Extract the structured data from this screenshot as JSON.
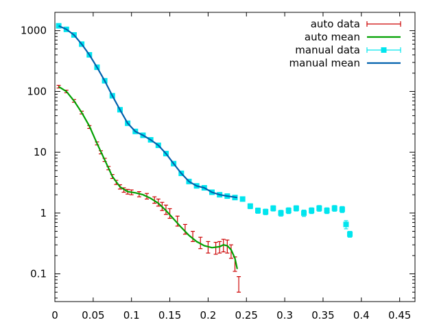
{
  "chart_data": {
    "type": "scatter",
    "title": "",
    "xlabel": "",
    "ylabel": "",
    "xlim": [
      0,
      0.47
    ],
    "ylim": [
      0.035,
      2000
    ],
    "y_scale": "log",
    "grid": false,
    "legend_position": "top-right",
    "x_ticks": [
      {
        "value": 0,
        "label": "0"
      },
      {
        "value": 0.05,
        "label": "0.05"
      },
      {
        "value": 0.1,
        "label": "0.1"
      },
      {
        "value": 0.15,
        "label": "0.15"
      },
      {
        "value": 0.2,
        "label": "0.2"
      },
      {
        "value": 0.25,
        "label": "0.25"
      },
      {
        "value": 0.3,
        "label": "0.3"
      },
      {
        "value": 0.35,
        "label": "0.35"
      },
      {
        "value": 0.4,
        "label": "0.4"
      },
      {
        "value": 0.45,
        "label": "0.45"
      }
    ],
    "y_ticks": [
      {
        "value": 0.1,
        "label": "0.1"
      },
      {
        "value": 1,
        "label": "1"
      },
      {
        "value": 10,
        "label": "10"
      },
      {
        "value": 100,
        "label": "100"
      },
      {
        "value": 1000,
        "label": "1000"
      }
    ],
    "series": [
      {
        "name": "auto data",
        "style": "errorbars",
        "color": "#cc0000",
        "x": [
          0.005,
          0.015,
          0.025,
          0.035,
          0.045,
          0.055,
          0.06,
          0.065,
          0.07,
          0.075,
          0.08,
          0.085,
          0.09,
          0.095,
          0.1,
          0.11,
          0.12,
          0.13,
          0.135,
          0.14,
          0.145,
          0.15,
          0.16,
          0.17,
          0.18,
          0.19,
          0.2,
          0.21,
          0.215,
          0.22,
          0.225,
          0.23,
          0.235,
          0.24
        ],
        "y": [
          120,
          100,
          70,
          45,
          26,
          14,
          10,
          7.5,
          5.5,
          4,
          3.2,
          2.7,
          2.4,
          2.25,
          2.2,
          2.05,
          1.9,
          1.65,
          1.5,
          1.3,
          1.15,
          1.0,
          0.75,
          0.55,
          0.42,
          0.33,
          0.28,
          0.27,
          0.28,
          0.3,
          0.29,
          0.24,
          0.15,
          0.07
        ],
        "err": [
          6,
          5,
          3.5,
          2.3,
          1.4,
          0.8,
          0.6,
          0.45,
          0.35,
          0.3,
          0.25,
          0.22,
          0.2,
          0.2,
          0.2,
          0.2,
          0.2,
          0.2,
          0.2,
          0.2,
          0.2,
          0.18,
          0.14,
          0.1,
          0.08,
          0.07,
          0.06,
          0.06,
          0.06,
          0.07,
          0.07,
          0.06,
          0.04,
          0.02
        ]
      },
      {
        "name": "auto mean",
        "style": "line",
        "color": "#00a000",
        "x": [
          0.005,
          0.015,
          0.025,
          0.035,
          0.045,
          0.055,
          0.065,
          0.075,
          0.085,
          0.095,
          0.105,
          0.115,
          0.125,
          0.135,
          0.145,
          0.155,
          0.165,
          0.175,
          0.185,
          0.195,
          0.205,
          0.215,
          0.22,
          0.225,
          0.23,
          0.235,
          0.238
        ],
        "y": [
          120,
          100,
          70,
          45,
          27,
          14,
          7.5,
          4.0,
          2.7,
          2.25,
          2.15,
          2.0,
          1.75,
          1.45,
          1.1,
          0.8,
          0.58,
          0.43,
          0.34,
          0.29,
          0.27,
          0.28,
          0.3,
          0.29,
          0.25,
          0.18,
          0.12
        ]
      },
      {
        "name": "manual data",
        "style": "errorbars-points",
        "color": "#00e5ee",
        "x": [
          0.005,
          0.015,
          0.025,
          0.035,
          0.045,
          0.055,
          0.065,
          0.075,
          0.085,
          0.095,
          0.105,
          0.115,
          0.125,
          0.135,
          0.145,
          0.155,
          0.165,
          0.175,
          0.185,
          0.195,
          0.205,
          0.215,
          0.225,
          0.235,
          0.245,
          0.255,
          0.265,
          0.275,
          0.285,
          0.295,
          0.305,
          0.315,
          0.325,
          0.335,
          0.345,
          0.355,
          0.365,
          0.375,
          0.38,
          0.385
        ],
        "y": [
          1200,
          1050,
          850,
          600,
          400,
          250,
          150,
          85,
          50,
          30,
          22,
          19,
          16,
          13,
          9.5,
          6.5,
          4.5,
          3.3,
          2.8,
          2.6,
          2.2,
          2.0,
          1.9,
          1.8,
          1.7,
          1.3,
          1.1,
          1.05,
          1.2,
          1.0,
          1.1,
          1.2,
          1.0,
          1.1,
          1.2,
          1.1,
          1.2,
          1.15,
          0.65,
          0.45
        ],
        "err": [
          60,
          50,
          40,
          30,
          20,
          13,
          8,
          4.5,
          2.5,
          1.5,
          1.1,
          1.0,
          0.8,
          0.7,
          0.5,
          0.35,
          0.25,
          0.2,
          0.17,
          0.16,
          0.14,
          0.13,
          0.13,
          0.13,
          0.13,
          0.12,
          0.11,
          0.11,
          0.12,
          0.11,
          0.12,
          0.12,
          0.12,
          0.12,
          0.13,
          0.12,
          0.13,
          0.13,
          0.1,
          0.05
        ]
      },
      {
        "name": "manual mean",
        "style": "line",
        "color": "#0060ad",
        "x": [
          0.005,
          0.015,
          0.025,
          0.035,
          0.045,
          0.055,
          0.065,
          0.075,
          0.085,
          0.095,
          0.105,
          0.115,
          0.125,
          0.135,
          0.145,
          0.155,
          0.165,
          0.175,
          0.185,
          0.195,
          0.205,
          0.215,
          0.225,
          0.238
        ],
        "y": [
          1200,
          1050,
          850,
          600,
          400,
          250,
          150,
          85,
          50,
          30,
          22,
          19,
          16,
          13,
          9.5,
          6.5,
          4.5,
          3.3,
          2.8,
          2.6,
          2.2,
          2.0,
          1.9,
          1.8
        ]
      }
    ]
  }
}
